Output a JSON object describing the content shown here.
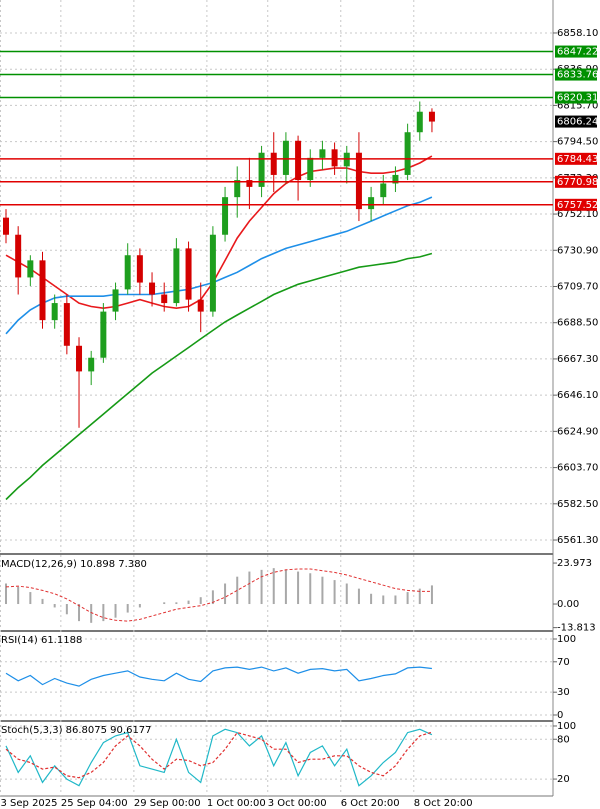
{
  "chart_data": [
    {
      "type": "candlestick",
      "categories": [
        "3 Sep 2025",
        null,
        null,
        null,
        null,
        "25 Sep 04:00",
        null,
        null,
        null,
        null,
        null,
        "29 Sep 00:00",
        null,
        null,
        null,
        null,
        null,
        "1 Oct 00:00",
        null,
        null,
        null,
        null,
        "3 Oct 00:00",
        null,
        null,
        null,
        null,
        null,
        "6 Oct 20:00",
        null,
        null,
        null,
        null,
        null,
        "8 Oct 20:00",
        null
      ],
      "open": [
        6750,
        6740,
        6715,
        6725,
        6690,
        6700,
        6675,
        6660,
        6668,
        6695,
        6708,
        6728,
        6712,
        6705,
        6700,
        6732,
        6702,
        6695,
        6740,
        6762,
        6772,
        6768,
        6788,
        6775,
        6795,
        6772,
        6785,
        6790,
        6780,
        6788,
        6755,
        6762,
        6770,
        6775,
        6800,
        6812
      ],
      "high": [
        6755,
        6745,
        6728,
        6730,
        6705,
        6705,
        6680,
        6672,
        6700,
        6712,
        6735,
        6732,
        6718,
        6712,
        6738,
        6736,
        6712,
        6745,
        6768,
        6780,
        6785,
        6792,
        6800,
        6800,
        6798,
        6790,
        6795,
        6794,
        6792,
        6800,
        6768,
        6775,
        6780,
        6805,
        6818,
        6814
      ],
      "low": [
        6735,
        6705,
        6710,
        6685,
        6685,
        6670,
        6627,
        6652,
        6665,
        6690,
        6705,
        6705,
        6698,
        6695,
        6698,
        6695,
        6683,
        6692,
        6736,
        6750,
        6755,
        6762,
        6765,
        6770,
        6760,
        6768,
        6778,
        6775,
        6770,
        6748,
        6748,
        6758,
        6765,
        6772,
        6795,
        6800
      ],
      "close": [
        6740,
        6715,
        6725,
        6690,
        6700,
        6675,
        6660,
        6668,
        6695,
        6708,
        6728,
        6712,
        6705,
        6700,
        6732,
        6702,
        6695,
        6740,
        6762,
        6772,
        6768,
        6788,
        6775,
        6795,
        6772,
        6785,
        6790,
        6780,
        6788,
        6755,
        6762,
        6770,
        6775,
        6800,
        6812,
        6806.24
      ],
      "up_color": "#1e9e1e",
      "down_color": "#d40000",
      "ma_lines": [
        {
          "color": "#e8191c",
          "values": [
            6728,
            6724,
            6720,
            6715,
            6710,
            6705,
            6700,
            6698,
            6697,
            6698,
            6700,
            6702,
            6700,
            6698,
            6697,
            6698,
            6702,
            6712,
            6725,
            6738,
            6748,
            6756,
            6764,
            6770,
            6774,
            6777,
            6778,
            6779,
            6779,
            6777,
            6776,
            6776,
            6777,
            6779,
            6782,
            6786
          ]
        },
        {
          "color": "#1e8fe8",
          "values": [
            6682,
            6690,
            6696,
            6700,
            6703,
            6704,
            6704,
            6704,
            6704,
            6705,
            6705,
            6705,
            6705,
            6706,
            6707,
            6708,
            6710,
            6712,
            6715,
            6718,
            6722,
            6726,
            6729,
            6732,
            6734,
            6736,
            6738,
            6740,
            6742,
            6745,
            6748,
            6751,
            6754,
            6757,
            6759,
            6762
          ]
        },
        {
          "color": "#169a16",
          "values": [
            6585,
            6592,
            6598,
            6605,
            6611,
            6617,
            6623,
            6629,
            6635,
            6641,
            6647,
            6653,
            6659,
            6664,
            6669,
            6674,
            6679,
            6684,
            6689,
            6693,
            6697,
            6701,
            6705,
            6708,
            6711,
            6713,
            6715,
            6717,
            6719,
            6721,
            6722,
            6723,
            6724,
            6726,
            6727,
            6729
          ]
        }
      ],
      "levels": [
        {
          "value": 6847.22,
          "color": "#009000"
        },
        {
          "value": 6833.76,
          "color": "#009000"
        },
        {
          "value": 6820.31,
          "color": "#009000"
        },
        {
          "value": 6784.43,
          "color": "#e00000"
        },
        {
          "value": 6770.98,
          "color": "#e00000"
        },
        {
          "value": 6757.52,
          "color": "#e00000"
        }
      ],
      "last_price": 6806.24,
      "ylim": [
        6553.7,
        6877.4
      ],
      "yticks": [
        {
          "value": 6858.1,
          "label": "6858.10"
        },
        {
          "value": 6836.9,
          "label": "6836.90"
        },
        {
          "value": 6815.7,
          "label": "6815.70"
        },
        {
          "value": 6794.5,
          "label": "6794.50"
        },
        {
          "value": 6773.3,
          "label": "6773.30"
        },
        {
          "value": 6752.1,
          "label": "6752.10"
        },
        {
          "value": 6730.9,
          "label": "6730.90"
        },
        {
          "value": 6709.7,
          "label": "6709.70"
        },
        {
          "value": 6688.5,
          "label": "6688.50"
        },
        {
          "value": 6667.3,
          "label": "6667.30"
        },
        {
          "value": 6646.1,
          "label": "6646.10"
        },
        {
          "value": 6624.9,
          "label": "6624.90"
        },
        {
          "value": 6603.7,
          "label": "6603.70"
        },
        {
          "value": 6582.5,
          "label": "6582.50"
        },
        {
          "value": 6561.3,
          "label": "6561.30"
        }
      ],
      "grid": true
    },
    {
      "type": "bar",
      "title": "MACD(12,26,9) 10.898 7.380",
      "color": "#a8a8a8",
      "values": [
        12,
        10,
        7,
        3,
        -2,
        -6,
        -10,
        -11,
        -10,
        -8,
        -5,
        -2,
        0,
        1,
        1,
        2,
        4,
        8,
        12,
        16,
        19,
        20,
        21,
        20,
        19,
        18,
        16,
        14,
        12,
        9,
        6,
        5,
        5,
        7,
        9,
        10.898
      ],
      "signal": {
        "color": "#e03030",
        "dash": true,
        "values": [
          10,
          10.5,
          9.6,
          8,
          6,
          3,
          -1,
          -5,
          -8,
          -9.5,
          -10,
          -9,
          -7,
          -5,
          -3,
          -2,
          -1,
          1,
          4,
          8,
          12,
          16,
          18.5,
          20,
          20.5,
          20.5,
          19.5,
          18.5,
          17,
          15,
          13,
          11,
          9,
          8,
          7.4,
          7.38
        ]
      },
      "ylim": [
        -15.2,
        28.1
      ],
      "yticks": [
        23.973,
        {
          "value": 0,
          "label": "0.00"
        },
        -13.813
      ],
      "grid": false
    },
    {
      "type": "line",
      "title": "RSI(14) 61.1188",
      "series": [
        {
          "color": "#1e8fe8",
          "dash": false,
          "values": [
            55,
            45,
            52,
            40,
            48,
            42,
            38,
            47,
            52,
            55,
            58,
            50,
            47,
            45,
            55,
            47,
            44,
            58,
            62,
            63,
            60,
            63,
            58,
            62,
            55,
            60,
            61,
            58,
            60,
            45,
            48,
            52,
            54,
            62,
            63,
            61.1188
          ]
        }
      ],
      "ylim": [
        -6.6,
        109.2
      ],
      "yticks": [
        100,
        70,
        30,
        0
      ],
      "grid": true
    },
    {
      "type": "line",
      "title": "Stoch(5,3,3) 86.8075 90.6177",
      "series": [
        {
          "color": "#20b8c8",
          "dash": false,
          "values": [
            70,
            30,
            55,
            15,
            40,
            20,
            10,
            45,
            75,
            85,
            90,
            40,
            35,
            30,
            80,
            30,
            15,
            85,
            95,
            90,
            70,
            85,
            40,
            75,
            25,
            60,
            70,
            40,
            65,
            10,
            25,
            45,
            60,
            90,
            95,
            86.8075
          ]
        },
        {
          "color": "#e03030",
          "dash": true,
          "values": [
            65,
            50,
            45,
            35,
            38,
            25,
            22,
            30,
            45,
            70,
            85,
            70,
            50,
            35,
            50,
            48,
            40,
            45,
            65,
            90,
            85,
            80,
            65,
            65,
            45,
            50,
            50,
            55,
            55,
            40,
            30,
            25,
            40,
            65,
            85,
            90.6177
          ]
        }
      ],
      "ylim": [
        -4,
        106
      ],
      "yticks": [
        100,
        80,
        20
      ],
      "grid": true
    }
  ]
}
